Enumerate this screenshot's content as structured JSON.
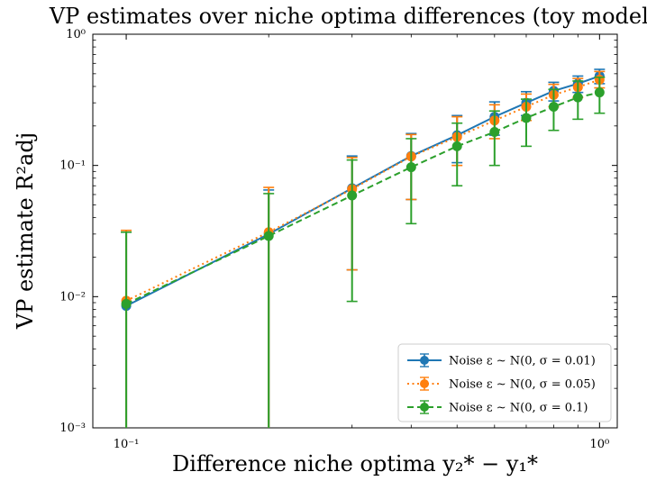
{
  "chart_data": {
    "type": "line",
    "title": "VP estimates over niche optima differences (toy model)",
    "xlabel": "Difference niche optima y₂* − y₁*",
    "ylabel": "VP estimate R²adj",
    "xscale": "log",
    "yscale": "log",
    "xlim": [
      0.085,
      1.09
    ],
    "ylim": [
      0.001,
      1
    ],
    "x_ticks": [
      {
        "value": 0.1,
        "label": "10⁻¹"
      },
      {
        "value": 1,
        "label": "10⁰"
      }
    ],
    "y_ticks": [
      {
        "value": 0.001,
        "label": "10⁻³"
      },
      {
        "value": 0.01,
        "label": "10⁻²"
      },
      {
        "value": 0.1,
        "label": "10⁻¹"
      },
      {
        "value": 1,
        "label": "10⁰"
      }
    ],
    "grid": false,
    "legend_position": "lower-right",
    "x": [
      0.1,
      0.2,
      0.3,
      0.4,
      0.5,
      0.6,
      0.7,
      0.8,
      0.9,
      1.0
    ],
    "series": [
      {
        "name": "Noise ε ∼ N(0, σ = 0.01)",
        "color": "#1f77b4",
        "linestyle": "solid",
        "values": [
          0.0085,
          0.03,
          0.067,
          0.118,
          0.17,
          0.235,
          0.3,
          0.37,
          0.42,
          0.48
        ],
        "err_low": [
          0.0001,
          0.0001,
          0.016,
          0.055,
          0.105,
          0.17,
          0.24,
          0.31,
          0.36,
          0.42
        ],
        "err_high": [
          0.031,
          0.065,
          0.118,
          0.175,
          0.24,
          0.305,
          0.365,
          0.43,
          0.48,
          0.54
        ]
      },
      {
        "name": "Noise ε ∼ N(0, σ = 0.05)",
        "color": "#ff7f0e",
        "linestyle": "dotted",
        "values": [
          0.0093,
          0.031,
          0.066,
          0.117,
          0.165,
          0.22,
          0.28,
          0.345,
          0.395,
          0.45
        ],
        "err_low": [
          0.0001,
          0.0001,
          0.016,
          0.055,
          0.1,
          0.16,
          0.22,
          0.28,
          0.33,
          0.39
        ],
        "err_high": [
          0.032,
          0.068,
          0.115,
          0.172,
          0.235,
          0.29,
          0.35,
          0.415,
          0.46,
          0.52
        ]
      },
      {
        "name": "Noise ε ∼ N(0, σ = 0.1)",
        "color": "#2ca02c",
        "linestyle": "dashed",
        "values": [
          0.0088,
          0.029,
          0.059,
          0.097,
          0.14,
          0.18,
          0.23,
          0.28,
          0.33,
          0.36
        ],
        "err_low": [
          0.0001,
          0.0001,
          0.0092,
          0.036,
          0.07,
          0.1,
          0.14,
          0.185,
          0.225,
          0.25
        ],
        "err_high": [
          0.031,
          0.061,
          0.11,
          0.16,
          0.21,
          0.26,
          0.32,
          0.38,
          0.44,
          0.47
        ]
      }
    ]
  }
}
